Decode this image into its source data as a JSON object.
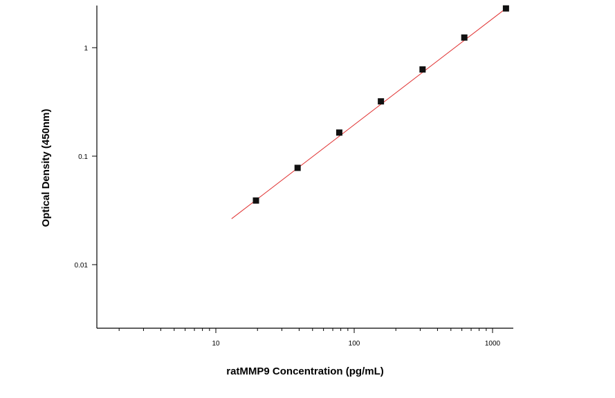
{
  "chart_data": {
    "type": "scatter",
    "title": "",
    "xlabel": "ratMMP9 Concentration (pg/mL)",
    "ylabel": "Optical Density (450nm)",
    "x_scale": "log",
    "y_scale": "log",
    "xlim": [
      1.6,
      1300
    ],
    "ylim": [
      0.0026,
      2.5
    ],
    "x_ticks": [
      {
        "value": 10,
        "label": "10"
      },
      {
        "value": 100,
        "label": "100"
      },
      {
        "value": 1000,
        "label": "1000"
      }
    ],
    "y_ticks": [
      {
        "value": 0.01,
        "label": "0.01"
      },
      {
        "value": 0.1,
        "label": "0.1"
      },
      {
        "value": 1,
        "label": "1"
      }
    ],
    "grid": false,
    "series": [
      {
        "points": [
          {
            "x": 19.5,
            "y": 0.039
          },
          {
            "x": 39,
            "y": 0.078
          },
          {
            "x": 78,
            "y": 0.165
          },
          {
            "x": 156,
            "y": 0.32
          },
          {
            "x": 312,
            "y": 0.63
          },
          {
            "x": 625,
            "y": 1.24
          },
          {
            "x": 1250,
            "y": 2.3
          }
        ],
        "marker_color": "#111111"
      }
    ],
    "fit_line": {
      "color": "#e03030",
      "points": [
        {
          "x": 13,
          "y": 0.0265
        },
        {
          "x": 1250,
          "y": 2.3
        }
      ]
    }
  }
}
